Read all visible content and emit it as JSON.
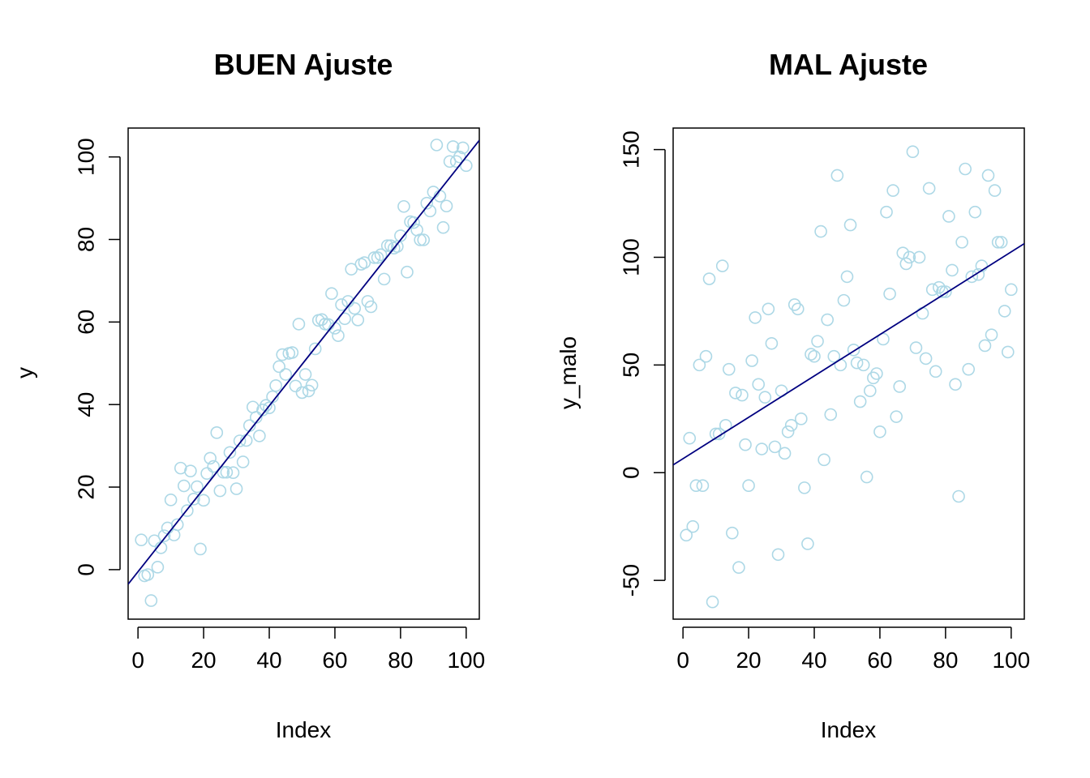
{
  "chart_data": [
    {
      "type": "scatter",
      "title": "BUEN Ajuste",
      "xlabel": "Index",
      "ylabel": "y",
      "xlim": [
        -3,
        104
      ],
      "ylim": [
        -12,
        107
      ],
      "xticks": [
        0,
        20,
        40,
        60,
        80,
        100
      ],
      "yticks": [
        0,
        20,
        40,
        60,
        80,
        100
      ],
      "grid": false,
      "point_color": "#add8e6",
      "line_color": "#000080",
      "fit_line": {
        "intercept": -0.5,
        "slope": 1.005
      },
      "x": [
        1,
        2,
        3,
        4,
        5,
        6,
        7,
        8,
        9,
        10,
        11,
        12,
        13,
        14,
        15,
        16,
        17,
        18,
        19,
        20,
        21,
        22,
        23,
        24,
        25,
        26,
        27,
        28,
        29,
        30,
        31,
        32,
        33,
        34,
        35,
        36,
        37,
        38,
        39,
        40,
        41,
        42,
        43,
        44,
        45,
        46,
        47,
        48,
        49,
        50,
        51,
        52,
        53,
        54,
        55,
        56,
        57,
        58,
        59,
        60,
        61,
        62,
        63,
        64,
        65,
        66,
        67,
        68,
        69,
        70,
        71,
        72,
        73,
        74,
        75,
        76,
        77,
        78,
        79,
        80,
        81,
        82,
        83,
        84,
        85,
        86,
        87,
        88,
        89,
        90,
        91,
        92,
        93,
        94,
        95,
        96,
        97,
        98,
        99,
        100
      ],
      "y": [
        7.2,
        -1.5,
        -1.2,
        -7.5,
        7.0,
        0.6,
        5.3,
        8.2,
        10.1,
        16.9,
        8.4,
        10.9,
        24.6,
        20.3,
        14.3,
        23.9,
        17.1,
        20.1,
        5.0,
        16.8,
        23.3,
        27.0,
        25.0,
        33.2,
        19.1,
        23.6,
        23.6,
        28.4,
        23.5,
        19.6,
        31.2,
        26.1,
        31.3,
        34.9,
        39.4,
        36.9,
        32.4,
        38.7,
        39.8,
        39.2,
        41.9,
        44.6,
        49.2,
        52.1,
        47.3,
        52.4,
        52.6,
        44.5,
        59.5,
        42.9,
        47.3,
        43.3,
        44.7,
        53.5,
        60.4,
        60.6,
        59.5,
        59.4,
        66.9,
        58.5,
        56.7,
        64.2,
        60.8,
        65.0,
        72.8,
        63.3,
        60.5,
        74.0,
        74.4,
        65.0,
        63.7,
        75.6,
        75.6,
        76.3,
        70.4,
        78.5,
        78.5,
        77.9,
        78.3,
        80.9,
        88.0,
        72.1,
        84.3,
        84.1,
        82.3,
        79.9,
        79.9,
        88.8,
        86.9,
        91.5,
        102.9,
        90.5,
        82.9,
        88.1,
        98.9,
        102.5,
        98.9,
        100.0,
        102.2,
        97.9
      ]
    },
    {
      "type": "scatter",
      "title": "MAL Ajuste",
      "xlabel": "Index",
      "ylabel": "y_malo",
      "xlim": [
        -3,
        104
      ],
      "ylim": [
        -68,
        160
      ],
      "xticks": [
        0,
        20,
        40,
        60,
        80,
        100
      ],
      "yticks": [
        -50,
        0,
        50,
        100,
        150
      ],
      "grid": false,
      "point_color": "#add8e6",
      "line_color": "#000080",
      "fit_line": {
        "intercept": 6.5,
        "slope": 0.96
      },
      "x": [
        1,
        2,
        3,
        4,
        5,
        6,
        7,
        8,
        9,
        10,
        11,
        12,
        13,
        14,
        15,
        16,
        17,
        18,
        19,
        20,
        21,
        22,
        23,
        24,
        25,
        26,
        27,
        28,
        29,
        30,
        31,
        32,
        33,
        34,
        35,
        36,
        37,
        38,
        39,
        40,
        41,
        42,
        43,
        44,
        45,
        46,
        47,
        48,
        49,
        50,
        51,
        52,
        53,
        54,
        55,
        56,
        57,
        58,
        59,
        60,
        61,
        62,
        63,
        64,
        65,
        66,
        67,
        68,
        69,
        70,
        71,
        72,
        73,
        74,
        75,
        76,
        77,
        78,
        79,
        80,
        81,
        82,
        83,
        84,
        85,
        86,
        87,
        88,
        89,
        90,
        91,
        92,
        93,
        94,
        95,
        96,
        97,
        98,
        99,
        100
      ],
      "y": [
        -29,
        16,
        -25,
        -6,
        50,
        -6,
        54,
        90,
        -60,
        18,
        18,
        96,
        22,
        48,
        -28,
        37,
        -44,
        36,
        13,
        -6,
        52,
        72,
        41,
        11,
        35,
        76,
        60,
        12,
        -38,
        38,
        9,
        19,
        22,
        78,
        76,
        25,
        -7,
        -33,
        55,
        54,
        61,
        112,
        6,
        71,
        27,
        54,
        138,
        50,
        80,
        91,
        115,
        57,
        51,
        33,
        50,
        -2,
        38,
        44,
        46,
        19,
        62,
        121,
        83,
        131,
        26,
        40,
        102,
        97,
        100,
        149,
        58,
        100,
        74,
        53,
        132,
        85,
        47,
        86,
        84,
        84,
        119,
        94,
        41,
        -11,
        107,
        141,
        48,
        91,
        121,
        92,
        96,
        59,
        138,
        64,
        131,
        107,
        107,
        75,
        56,
        85
      ]
    }
  ]
}
